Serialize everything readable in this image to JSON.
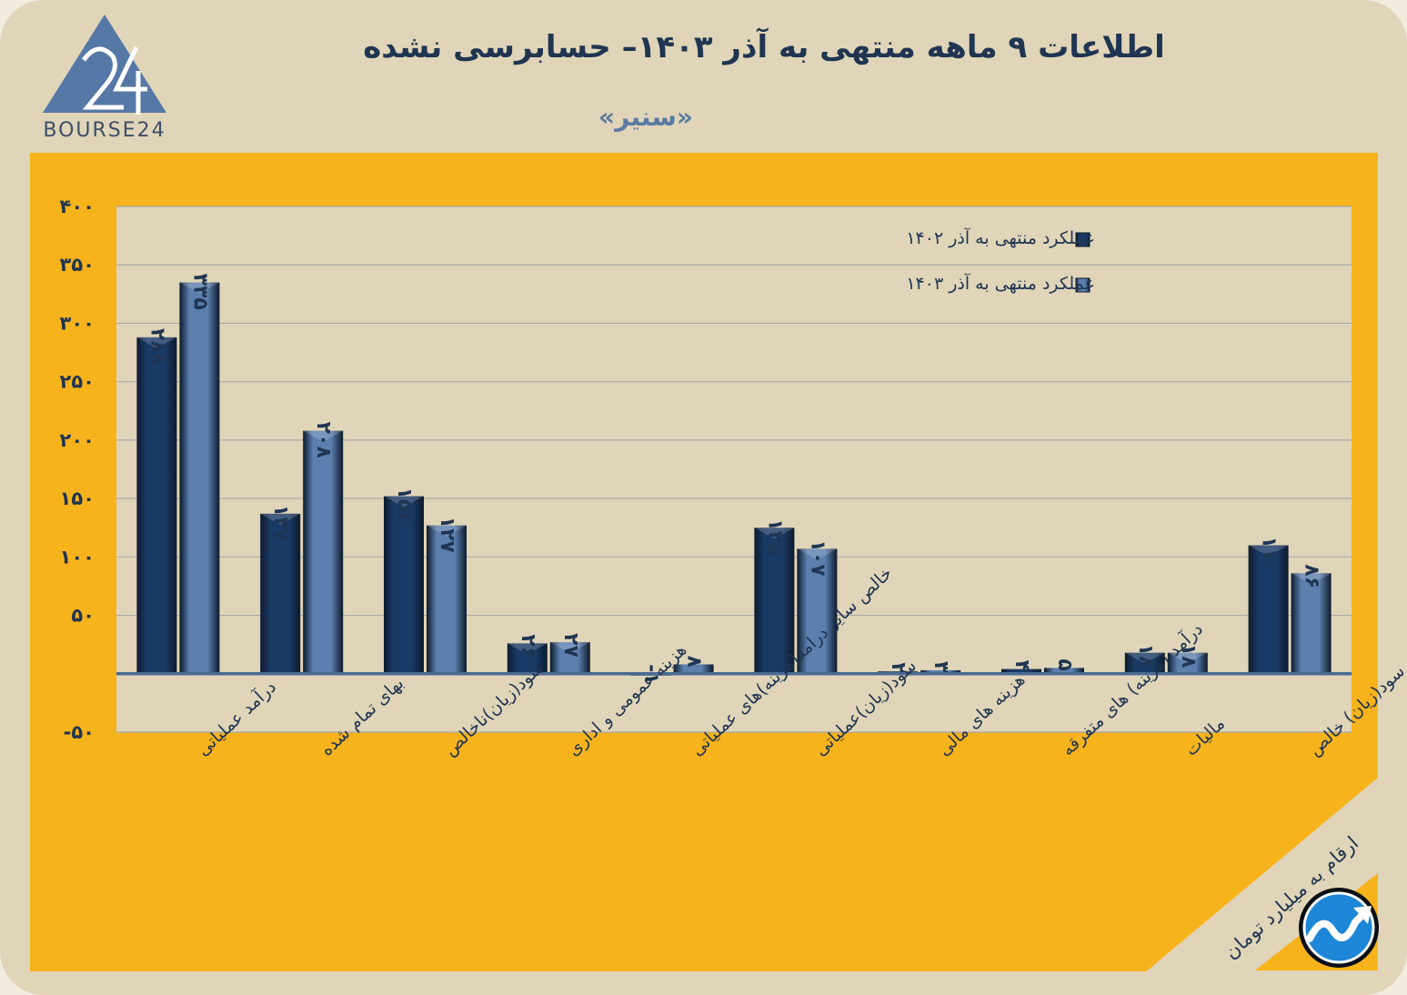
{
  "header": {
    "title": "اطلاعات ۹ ماهه منتهی به آذر ۱۴۰۳– حسابرسی نشده",
    "company": "«سنیر»",
    "logo_text": "BOURSE24"
  },
  "footer": {
    "unit_note": "ارقام به میلیارد تومان"
  },
  "colors": {
    "panel": "#f7b31c",
    "background": "#e0d5b8",
    "series_1402": "#1a3a66",
    "series_1403": "#5c7fae",
    "text": "#1f3552"
  },
  "chart_data": {
    "type": "bar",
    "title": "اطلاعات ۹ ماهه منتهی به آذر ۱۴۰۳– حسابرسی نشده",
    "xlabel": "",
    "ylabel": "",
    "ylim": [
      -50,
      400
    ],
    "yticks": [
      -50,
      50,
      100,
      150,
      200,
      250,
      300,
      350,
      400
    ],
    "ytick_labels": [
      "-۵۰",
      "۵۰",
      "۱۰۰",
      "۱۵۰",
      "۲۰۰",
      "۲۵۰",
      "۳۰۰",
      "۳۵۰",
      "۴۰۰"
    ],
    "grid": true,
    "legend_position": "top-right",
    "categories": [
      "درآمد عملیاتی",
      "بهای تمام شده",
      "سود(زیان)ناخالص",
      "هزینه عمومی و اداری",
      "خالص سایر درامد(هزینه)های عملیاتی",
      "سود(زیان)عملیاتی",
      "هزینه های مالی",
      "درآمد (هزینه) های متفرقه",
      "مالیات",
      "سود(زیان) خالص"
    ],
    "series": [
      {
        "name": "عملکرد منتهی به آذر ۱۴۰۲",
        "values": [
          288,
          137,
          152,
          26,
          -1,
          125,
          2,
          4,
          18,
          110
        ],
        "labels": [
          "۲۸۸",
          "۱۳۷",
          "۱۵۲",
          "۲۶",
          "-۱",
          "۱۲۵",
          "۲",
          "۴",
          "۱۸",
          "۱۱۰"
        ]
      },
      {
        "name": "عملکرد منتهی به آذر ۱۴۰۳",
        "values": [
          335,
          208,
          127,
          27,
          8,
          107,
          3,
          5,
          18,
          86
        ],
        "labels": [
          "۳۳۵",
          "۲۰۸",
          "۱۲۷",
          "۲۷",
          "۸",
          "۱۰۷",
          "۳",
          "۵",
          "۱۸",
          "۸۶"
        ]
      }
    ]
  }
}
